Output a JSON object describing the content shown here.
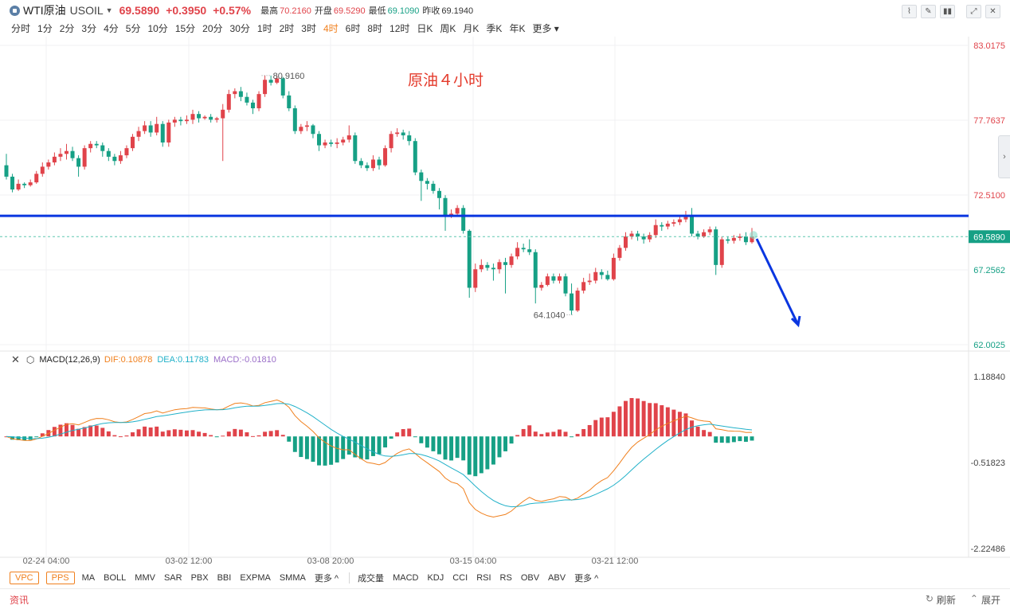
{
  "header": {
    "symbol_name": "WTI原油",
    "symbol_code": "USOIL",
    "price": "69.5890",
    "change": "+0.3950",
    "change_pct": "+0.57%",
    "stats": [
      {
        "label": "最高",
        "value": "70.2160",
        "tone": "up"
      },
      {
        "label": "开盘",
        "value": "69.5290",
        "tone": "up"
      },
      {
        "label": "最低",
        "value": "69.1090",
        "tone": "down"
      },
      {
        "label": "昨收",
        "value": "69.1940",
        "tone": "flat"
      }
    ],
    "periods": [
      "分时",
      "1分",
      "2分",
      "3分",
      "4分",
      "5分",
      "10分",
      "15分",
      "20分",
      "30分",
      "1时",
      "2时",
      "3时",
      "4时",
      "6时",
      "8时",
      "12时",
      "日K",
      "周K",
      "月K",
      "季K",
      "年K",
      "更多"
    ],
    "active_period": "4时",
    "tool_icons": [
      "line-chart-icon",
      "pen-icon",
      "candle-icon",
      "expand-icon",
      "close-icon"
    ]
  },
  "chart_data": {
    "type": "candlestick",
    "title": "原油４小时",
    "y_axis_labels": [
      "83.0175",
      "77.7637",
      "72.5100",
      "69.5890",
      "67.2562",
      "62.0025"
    ],
    "ylim": [
      62.0025,
      83.0175
    ],
    "x_axis_labels": [
      "02-24 04:00",
      "03-02 12:00",
      "03-08 20:00",
      "03-15 04:00",
      "03-21 12:00"
    ],
    "high_annotation": "80.9160",
    "low_annotation": "64.1040",
    "current_price": 69.589,
    "horizontal_line": 71.05,
    "candles": [
      [
        74.6,
        73.8,
        75.4,
        73.6
      ],
      [
        73.8,
        72.9,
        74.0,
        72.7
      ],
      [
        72.9,
        73.3,
        73.6,
        72.8
      ],
      [
        73.3,
        73.2,
        73.4,
        73.0
      ],
      [
        73.2,
        73.4,
        73.6,
        73.1
      ],
      [
        73.4,
        74.0,
        74.2,
        73.3
      ],
      [
        74.0,
        74.5,
        74.8,
        73.8
      ],
      [
        74.5,
        74.8,
        75.0,
        74.3
      ],
      [
        74.8,
        75.2,
        75.5,
        74.6
      ],
      [
        75.2,
        75.4,
        75.8,
        74.9
      ],
      [
        75.4,
        75.6,
        76.1,
        75.0
      ],
      [
        75.6,
        75.1,
        75.9,
        74.9
      ],
      [
        75.1,
        74.5,
        75.3,
        73.8
      ],
      [
        74.5,
        75.8,
        76.0,
        74.3
      ],
      [
        75.8,
        76.1,
        76.3,
        75.5
      ],
      [
        76.1,
        76.0,
        76.3,
        75.8
      ],
      [
        76.0,
        75.6,
        76.2,
        75.2
      ],
      [
        75.6,
        75.2,
        75.8,
        74.9
      ],
      [
        75.2,
        74.9,
        75.4,
        74.6
      ],
      [
        74.9,
        75.3,
        75.6,
        74.7
      ],
      [
        75.3,
        75.8,
        76.0,
        75.1
      ],
      [
        75.8,
        76.6,
        76.8,
        75.6
      ],
      [
        76.6,
        77.0,
        77.3,
        76.3
      ],
      [
        77.0,
        77.4,
        77.7,
        76.8
      ],
      [
        77.4,
        76.9,
        77.7,
        76.6
      ],
      [
        76.9,
        77.5,
        78.0,
        76.7
      ],
      [
        77.5,
        76.2,
        77.7,
        75.9
      ],
      [
        76.2,
        77.6,
        77.8,
        75.9
      ],
      [
        77.6,
        77.8,
        78.0,
        77.3
      ],
      [
        77.8,
        77.7,
        78.0,
        77.4
      ],
      [
        77.7,
        77.8,
        78.1,
        77.5
      ],
      [
        77.8,
        78.2,
        78.5,
        77.5
      ],
      [
        78.2,
        77.9,
        78.4,
        77.6
      ],
      [
        77.9,
        78.0,
        78.1,
        77.8
      ],
      [
        78.0,
        77.8,
        78.2,
        77.6
      ],
      [
        77.8,
        77.9,
        78.0,
        77.6
      ],
      [
        77.9,
        78.5,
        78.9,
        74.9
      ],
      [
        78.5,
        79.6,
        79.9,
        78.3
      ],
      [
        79.6,
        79.8,
        80.0,
        79.3
      ],
      [
        79.8,
        79.4,
        80.1,
        79.1
      ],
      [
        79.4,
        79.0,
        79.7,
        78.8
      ],
      [
        79.0,
        78.6,
        79.2,
        78.2
      ],
      [
        78.6,
        79.6,
        79.8,
        78.4
      ],
      [
        79.6,
        80.6,
        80.9,
        79.4
      ],
      [
        80.6,
        80.4,
        80.9,
        80.2
      ],
      [
        80.4,
        80.7,
        80.9,
        80.3
      ],
      [
        80.7,
        79.5,
        80.8,
        79.3
      ],
      [
        79.5,
        78.6,
        79.8,
        78.4
      ],
      [
        78.6,
        77.0,
        78.8,
        76.8
      ],
      [
        77.0,
        77.3,
        77.5,
        76.8
      ],
      [
        77.3,
        77.4,
        77.7,
        77.0
      ],
      [
        77.4,
        76.8,
        77.5,
        76.5
      ],
      [
        76.8,
        76.0,
        77.0,
        75.6
      ],
      [
        76.0,
        76.2,
        76.4,
        75.8
      ],
      [
        76.2,
        76.1,
        76.4,
        75.9
      ],
      [
        76.1,
        76.2,
        76.5,
        75.8
      ],
      [
        76.2,
        76.4,
        76.6,
        76.0
      ],
      [
        76.4,
        76.7,
        77.4,
        76.2
      ],
      [
        76.7,
        74.9,
        76.9,
        74.7
      ],
      [
        74.9,
        74.6,
        75.1,
        74.4
      ],
      [
        74.6,
        74.4,
        74.8,
        74.2
      ],
      [
        74.4,
        75.0,
        75.3,
        74.2
      ],
      [
        75.0,
        74.6,
        75.2,
        74.3
      ],
      [
        74.6,
        75.8,
        76.0,
        74.5
      ],
      [
        75.8,
        76.8,
        77.0,
        75.5
      ],
      [
        76.8,
        76.9,
        77.2,
        76.6
      ],
      [
        76.9,
        76.7,
        77.1,
        76.4
      ],
      [
        76.7,
        76.3,
        77.0,
        76.0
      ],
      [
        76.3,
        74.1,
        76.5,
        73.9
      ],
      [
        74.1,
        73.5,
        74.3,
        72.1
      ],
      [
        73.5,
        73.3,
        73.7,
        72.9
      ],
      [
        73.3,
        72.8,
        73.5,
        72.6
      ],
      [
        72.8,
        72.3,
        73.0,
        71.5
      ],
      [
        72.3,
        71.0,
        72.5,
        70.0
      ],
      [
        71.0,
        71.2,
        71.5,
        70.9
      ],
      [
        71.2,
        71.6,
        71.8,
        71.0
      ],
      [
        71.6,
        70.0,
        71.8,
        69.8
      ],
      [
        70.0,
        66.0,
        70.1,
        65.3
      ],
      [
        66.0,
        67.3,
        67.7,
        65.7
      ],
      [
        67.3,
        67.6,
        68.0,
        67.1
      ],
      [
        67.6,
        67.4,
        67.8,
        67.2
      ],
      [
        67.4,
        67.3,
        67.7,
        66.5
      ],
      [
        67.3,
        67.8,
        68.0,
        67.0
      ],
      [
        67.8,
        67.6,
        68.1,
        65.6
      ],
      [
        67.6,
        68.2,
        68.4,
        67.4
      ],
      [
        68.2,
        68.8,
        69.2,
        68.0
      ],
      [
        68.8,
        68.7,
        69.1,
        68.5
      ],
      [
        68.7,
        68.5,
        69.4,
        68.3
      ],
      [
        68.5,
        66.0,
        68.7,
        64.9
      ],
      [
        66.0,
        66.2,
        66.4,
        65.8
      ],
      [
        66.2,
        66.8,
        67.0,
        66.1
      ],
      [
        66.8,
        66.5,
        67.0,
        66.3
      ],
      [
        66.5,
        66.8,
        67.0,
        66.3
      ],
      [
        66.8,
        65.6,
        67.0,
        65.4
      ],
      [
        65.6,
        64.4,
        66.3,
        64.1
      ],
      [
        64.4,
        65.8,
        66.0,
        64.3
      ],
      [
        65.8,
        66.4,
        66.7,
        65.6
      ],
      [
        66.4,
        66.5,
        67.0,
        66.2
      ],
      [
        66.5,
        67.1,
        67.4,
        66.3
      ],
      [
        67.1,
        66.9,
        67.3,
        66.6
      ],
      [
        66.9,
        66.6,
        67.2,
        66.5
      ],
      [
        66.6,
        68.1,
        68.4,
        66.5
      ],
      [
        68.1,
        68.8,
        69.0,
        67.9
      ],
      [
        68.8,
        69.6,
        69.9,
        68.6
      ],
      [
        69.6,
        69.8,
        70.0,
        69.4
      ],
      [
        69.8,
        69.6,
        70.0,
        69.3
      ],
      [
        69.6,
        69.4,
        69.8,
        69.1
      ],
      [
        69.4,
        69.7,
        69.9,
        69.2
      ],
      [
        69.7,
        70.4,
        70.8,
        69.5
      ],
      [
        70.4,
        70.3,
        70.6,
        70.0
      ],
      [
        70.3,
        70.5,
        70.7,
        70.1
      ],
      [
        70.5,
        70.6,
        70.8,
        70.3
      ],
      [
        70.6,
        70.8,
        71.0,
        70.4
      ],
      [
        70.8,
        71.1,
        71.4,
        70.6
      ],
      [
        71.1,
        69.8,
        71.6,
        69.6
      ],
      [
        69.8,
        69.6,
        70.0,
        69.4
      ],
      [
        69.6,
        69.9,
        70.1,
        69.5
      ],
      [
        69.9,
        70.1,
        70.3,
        69.7
      ],
      [
        70.1,
        67.6,
        70.3,
        66.9
      ],
      [
        67.6,
        69.4,
        69.6,
        67.4
      ],
      [
        69.4,
        69.3,
        69.6,
        69.1
      ],
      [
        69.3,
        69.5,
        69.7,
        69.1
      ],
      [
        69.5,
        69.6,
        69.8,
        69.3
      ],
      [
        69.6,
        69.2,
        69.9,
        69.0
      ],
      [
        69.2,
        69.6,
        70.2,
        69.1
      ]
    ]
  },
  "macd": {
    "title": "MACD(12,26,9)",
    "dif": "DIF:0.10878",
    "dea": "DEA:0.11783",
    "macd": "MACD:-0.01810",
    "y_labels": [
      "1.18840",
      "-0.51823",
      "-2.22486"
    ]
  },
  "indicators": {
    "toggles": [
      "VPC",
      "PPS"
    ],
    "main": [
      "MA",
      "BOLL",
      "MMV",
      "SAR",
      "PBX",
      "BBI",
      "EXPMA",
      "SMMA",
      "更多"
    ],
    "sub": [
      "成交量",
      "MACD",
      "KDJ",
      "CCI",
      "RSI",
      "RS",
      "OBV",
      "ABV",
      "更多"
    ]
  },
  "footer": {
    "news": "资讯",
    "refresh": "刷新",
    "expand": "展开"
  },
  "colors": {
    "up": "#e0434a",
    "down": "#16a085",
    "active": "#f0801e",
    "hline": "#0a36e0",
    "dif": "#f0801e",
    "dea": "#21b1c9"
  }
}
